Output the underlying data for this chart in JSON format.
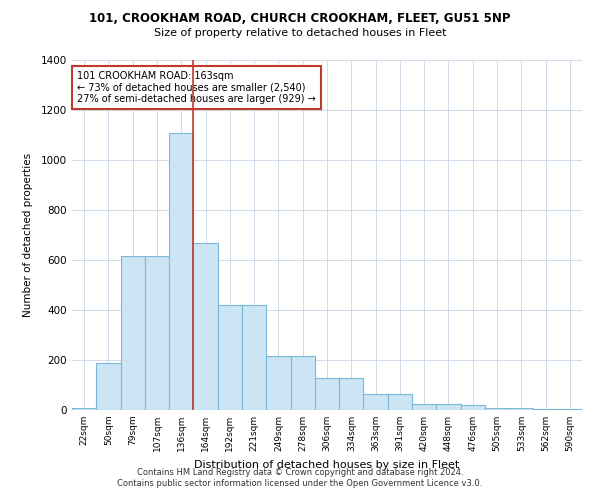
{
  "title_line1": "101, CROOKHAM ROAD, CHURCH CROOKHAM, FLEET, GU51 5NP",
  "title_line2": "Size of property relative to detached houses in Fleet",
  "xlabel": "Distribution of detached houses by size in Fleet",
  "ylabel": "Number of detached properties",
  "categories": [
    "22sqm",
    "50sqm",
    "79sqm",
    "107sqm",
    "136sqm",
    "164sqm",
    "192sqm",
    "221sqm",
    "249sqm",
    "278sqm",
    "306sqm",
    "334sqm",
    "363sqm",
    "391sqm",
    "420sqm",
    "448sqm",
    "476sqm",
    "505sqm",
    "533sqm",
    "562sqm",
    "590sqm"
  ],
  "values": [
    10,
    190,
    615,
    615,
    1110,
    670,
    420,
    420,
    215,
    215,
    130,
    130,
    65,
    65,
    25,
    25,
    20,
    10,
    10,
    5,
    5
  ],
  "bar_color": "#cce5f5",
  "bar_edge_color": "#7ab8d9",
  "bar_edge_width": 0.8,
  "vline_pos": 4.5,
  "vline_color": "#c0392b",
  "vline_linewidth": 1.2,
  "annotation_text": "101 CROOKHAM ROAD: 163sqm\n← 73% of detached houses are smaller (2,540)\n27% of semi-detached houses are larger (929) →",
  "annotation_box_color": "#ffffff",
  "annotation_box_edge": "#c0392b",
  "ylim": [
    0,
    1400
  ],
  "yticks": [
    0,
    200,
    400,
    600,
    800,
    1000,
    1200,
    1400
  ],
  "footer_line1": "Contains HM Land Registry data © Crown copyright and database right 2024.",
  "footer_line2": "Contains public sector information licensed under the Open Government Licence v3.0.",
  "background_color": "#ffffff",
  "grid_color": "#c8d4e8"
}
